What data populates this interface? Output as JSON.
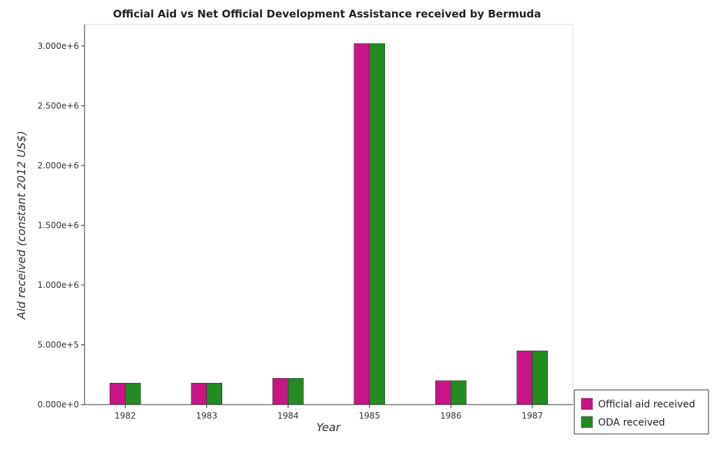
{
  "chart_data": {
    "type": "bar",
    "title": "Official Aid vs Net Official Development Assistance received by Bermuda",
    "xlabel": "Year",
    "ylabel": "Aid received (constant 2012 US$)",
    "categories": [
      "1982",
      "1983",
      "1984",
      "1985",
      "1986",
      "1987"
    ],
    "series": [
      {
        "name": "Official aid received",
        "color": "#c71585",
        "values": [
          180000,
          180000,
          220000,
          3020000,
          200000,
          450000
        ]
      },
      {
        "name": "ODA received",
        "color": "#228b22",
        "values": [
          180000,
          180000,
          220000,
          3020000,
          200000,
          450000
        ]
      }
    ],
    "ylim": [
      0,
      3180000
    ],
    "yticks": [
      0,
      500000,
      1000000,
      1500000,
      2000000,
      2500000,
      3000000
    ],
    "ytick_labels": [
      "0.000e+0",
      "5.000e+5",
      "1.000e+6",
      "1.500e+6",
      "2.000e+6",
      "2.500e+6",
      "3.000e+6"
    ],
    "grid": false,
    "legend_position": "bottom-right"
  }
}
